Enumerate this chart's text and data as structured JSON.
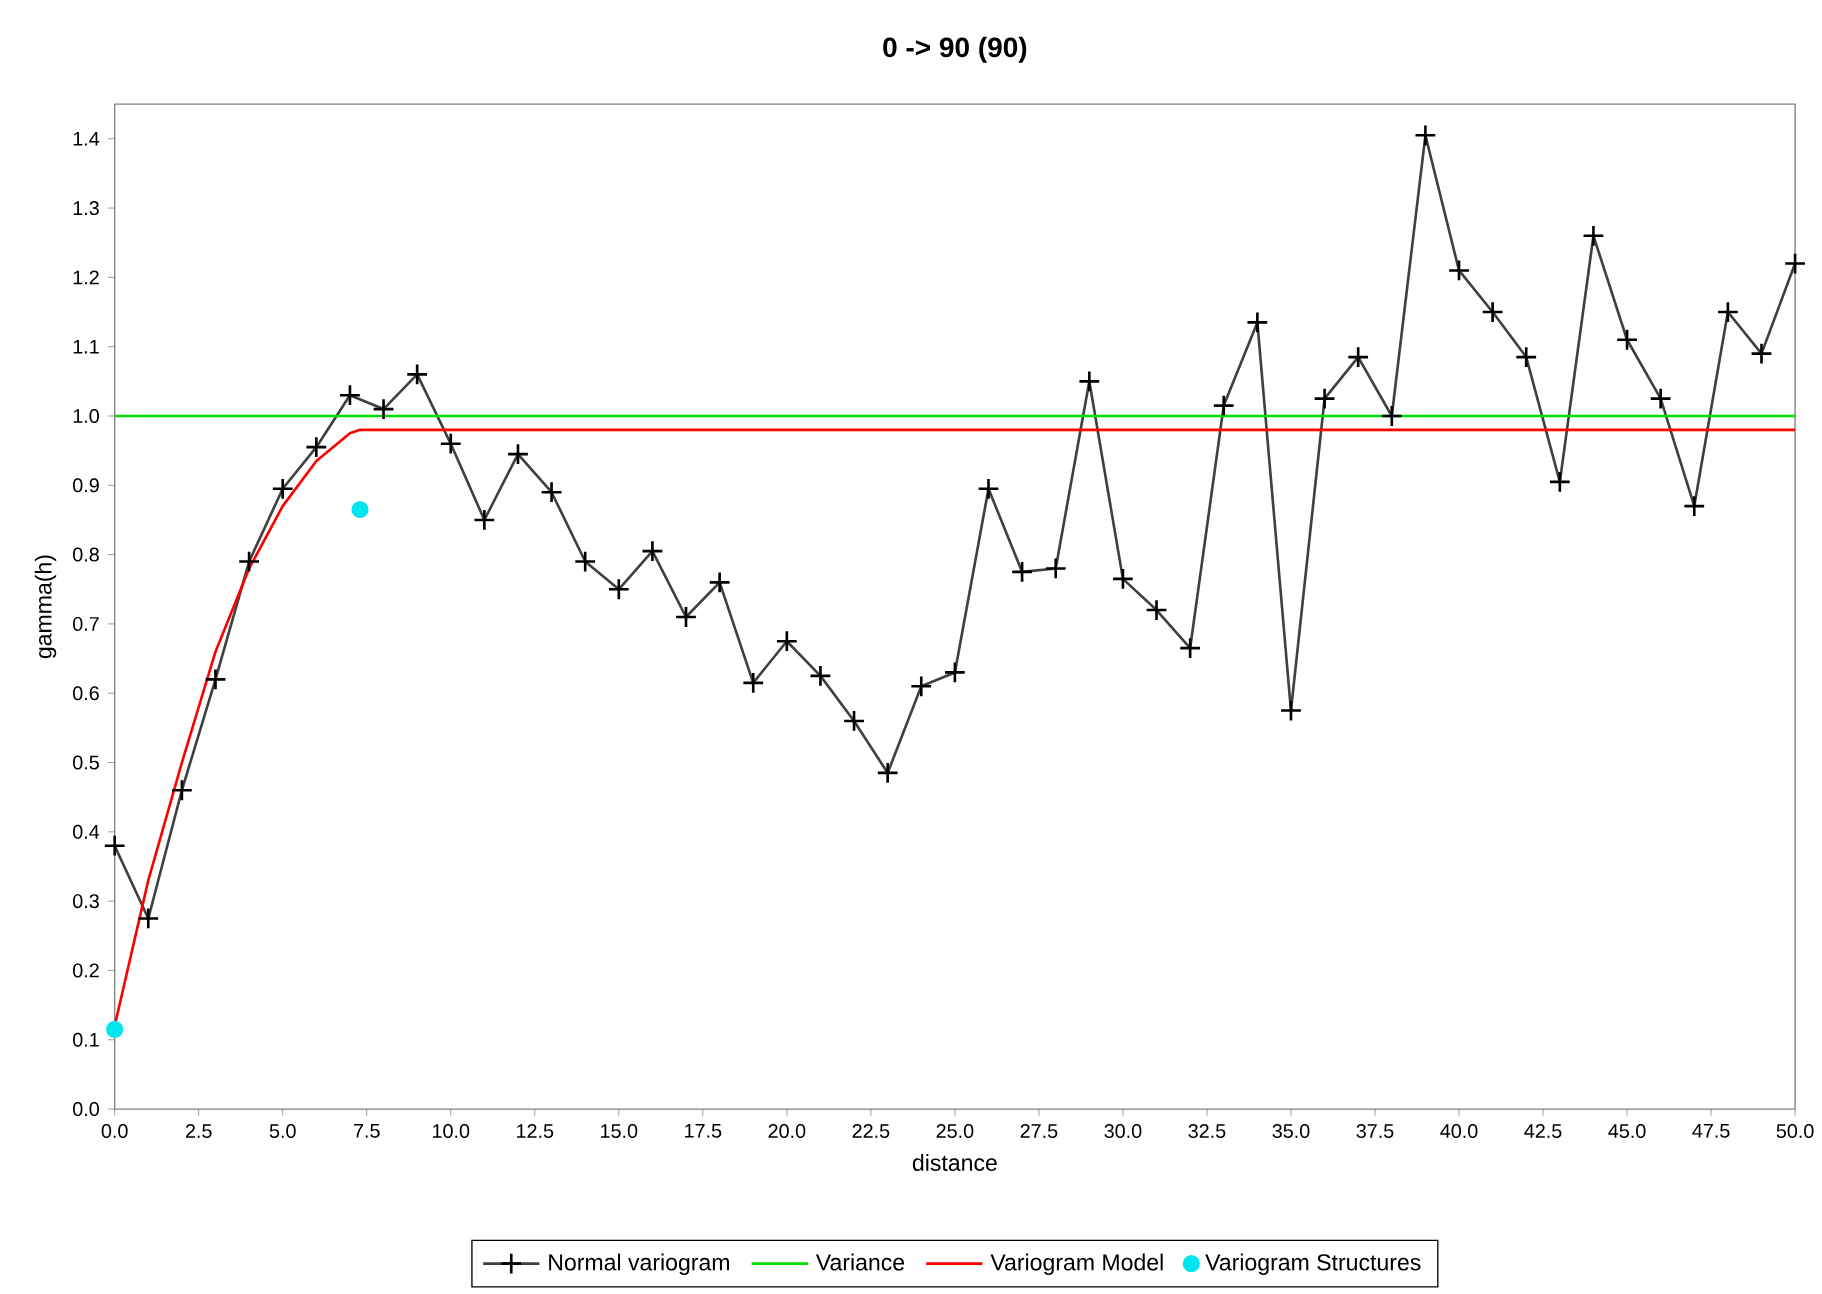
{
  "chart_data": {
    "type": "line",
    "title": "0 -> 90 (90)",
    "xlabel": "distance",
    "ylabel": "gamma(h)",
    "x": [
      0,
      1,
      2,
      3,
      4,
      5,
      6,
      7,
      8,
      9,
      10,
      11,
      12,
      13,
      14,
      15,
      16,
      17,
      18,
      19,
      20,
      21,
      22,
      23,
      24,
      25,
      26,
      27,
      28,
      29,
      30,
      31,
      32,
      33,
      34,
      35,
      36,
      37,
      38,
      39,
      40,
      41,
      42,
      43,
      44,
      45,
      46,
      47,
      48,
      49,
      50
    ],
    "series": [
      {
        "name": "Normal variogram",
        "color": "#404040",
        "marker": "cross",
        "values": [
          0.38,
          0.275,
          0.46,
          0.62,
          0.79,
          0.895,
          0.955,
          1.03,
          1.01,
          1.06,
          0.96,
          0.85,
          0.945,
          0.89,
          0.79,
          0.75,
          0.805,
          0.71,
          0.76,
          0.615,
          0.675,
          0.625,
          0.56,
          0.485,
          0.61,
          0.63,
          0.895,
          0.775,
          0.78,
          1.05,
          0.765,
          0.72,
          0.665,
          1.015,
          1.135,
          0.575,
          1.025,
          1.085,
          1.0,
          1.405,
          1.21,
          1.15,
          1.085,
          0.905,
          1.26,
          1.11,
          1.025,
          0.87,
          1.15,
          1.09,
          1.22
        ]
      },
      {
        "name": "Variance",
        "color": "#00dd00",
        "marker": "none",
        "x": [
          0,
          50
        ],
        "values": [
          1.0,
          1.0
        ]
      },
      {
        "name": "Variogram Model",
        "color": "#ff0000",
        "marker": "none",
        "x": [
          0,
          1,
          2,
          3,
          4,
          5,
          6,
          7,
          7.3,
          50
        ],
        "values": [
          0.12,
          0.33,
          0.5,
          0.66,
          0.78,
          0.87,
          0.935,
          0.975,
          0.98,
          0.98
        ]
      },
      {
        "name": "Variogram Structures",
        "type": "scatter",
        "color": "#00e5ee",
        "marker": "circle",
        "x": [
          0,
          7.3
        ],
        "values": [
          0.115,
          0.865
        ]
      }
    ],
    "xlim": [
      0,
      50
    ],
    "ylim": [
      0,
      1.45
    ],
    "xticks": [
      {
        "value": 0,
        "label": "0.0"
      },
      {
        "value": 2.5,
        "label": "2.5"
      },
      {
        "value": 5,
        "label": "5.0"
      },
      {
        "value": 7.5,
        "label": "7.5"
      },
      {
        "value": 10,
        "label": "10.0"
      },
      {
        "value": 12.5,
        "label": "12.5"
      },
      {
        "value": 15,
        "label": "15.0"
      },
      {
        "value": 17.5,
        "label": "17.5"
      },
      {
        "value": 20,
        "label": "20.0"
      },
      {
        "value": 22.5,
        "label": "22.5"
      },
      {
        "value": 25,
        "label": "25.0"
      },
      {
        "value": 27.5,
        "label": "27.5"
      },
      {
        "value": 30,
        "label": "30.0"
      },
      {
        "value": 32.5,
        "label": "32.5"
      },
      {
        "value": 35,
        "label": "35.0"
      },
      {
        "value": 37.5,
        "label": "37.5"
      },
      {
        "value": 40,
        "label": "40.0"
      },
      {
        "value": 42.5,
        "label": "42.5"
      },
      {
        "value": 45,
        "label": "45.0"
      },
      {
        "value": 47.5,
        "label": "47.5"
      },
      {
        "value": 50,
        "label": "50.0"
      }
    ],
    "yticks": [
      {
        "value": 0,
        "label": "0.0"
      },
      {
        "value": 0.1,
        "label": "0.1"
      },
      {
        "value": 0.2,
        "label": "0.2"
      },
      {
        "value": 0.3,
        "label": "0.3"
      },
      {
        "value": 0.4,
        "label": "0.4"
      },
      {
        "value": 0.5,
        "label": "0.5"
      },
      {
        "value": 0.6,
        "label": "0.6"
      },
      {
        "value": 0.7,
        "label": "0.7"
      },
      {
        "value": 0.8,
        "label": "0.8"
      },
      {
        "value": 0.9,
        "label": "0.9"
      },
      {
        "value": 1.0,
        "label": "1.0"
      },
      {
        "value": 1.1,
        "label": "1.1"
      },
      {
        "value": 1.2,
        "label": "1.2"
      },
      {
        "value": 1.3,
        "label": "1.3"
      },
      {
        "value": 1.4,
        "label": "1.4"
      }
    ],
    "grid": false,
    "legend": "bottom"
  }
}
